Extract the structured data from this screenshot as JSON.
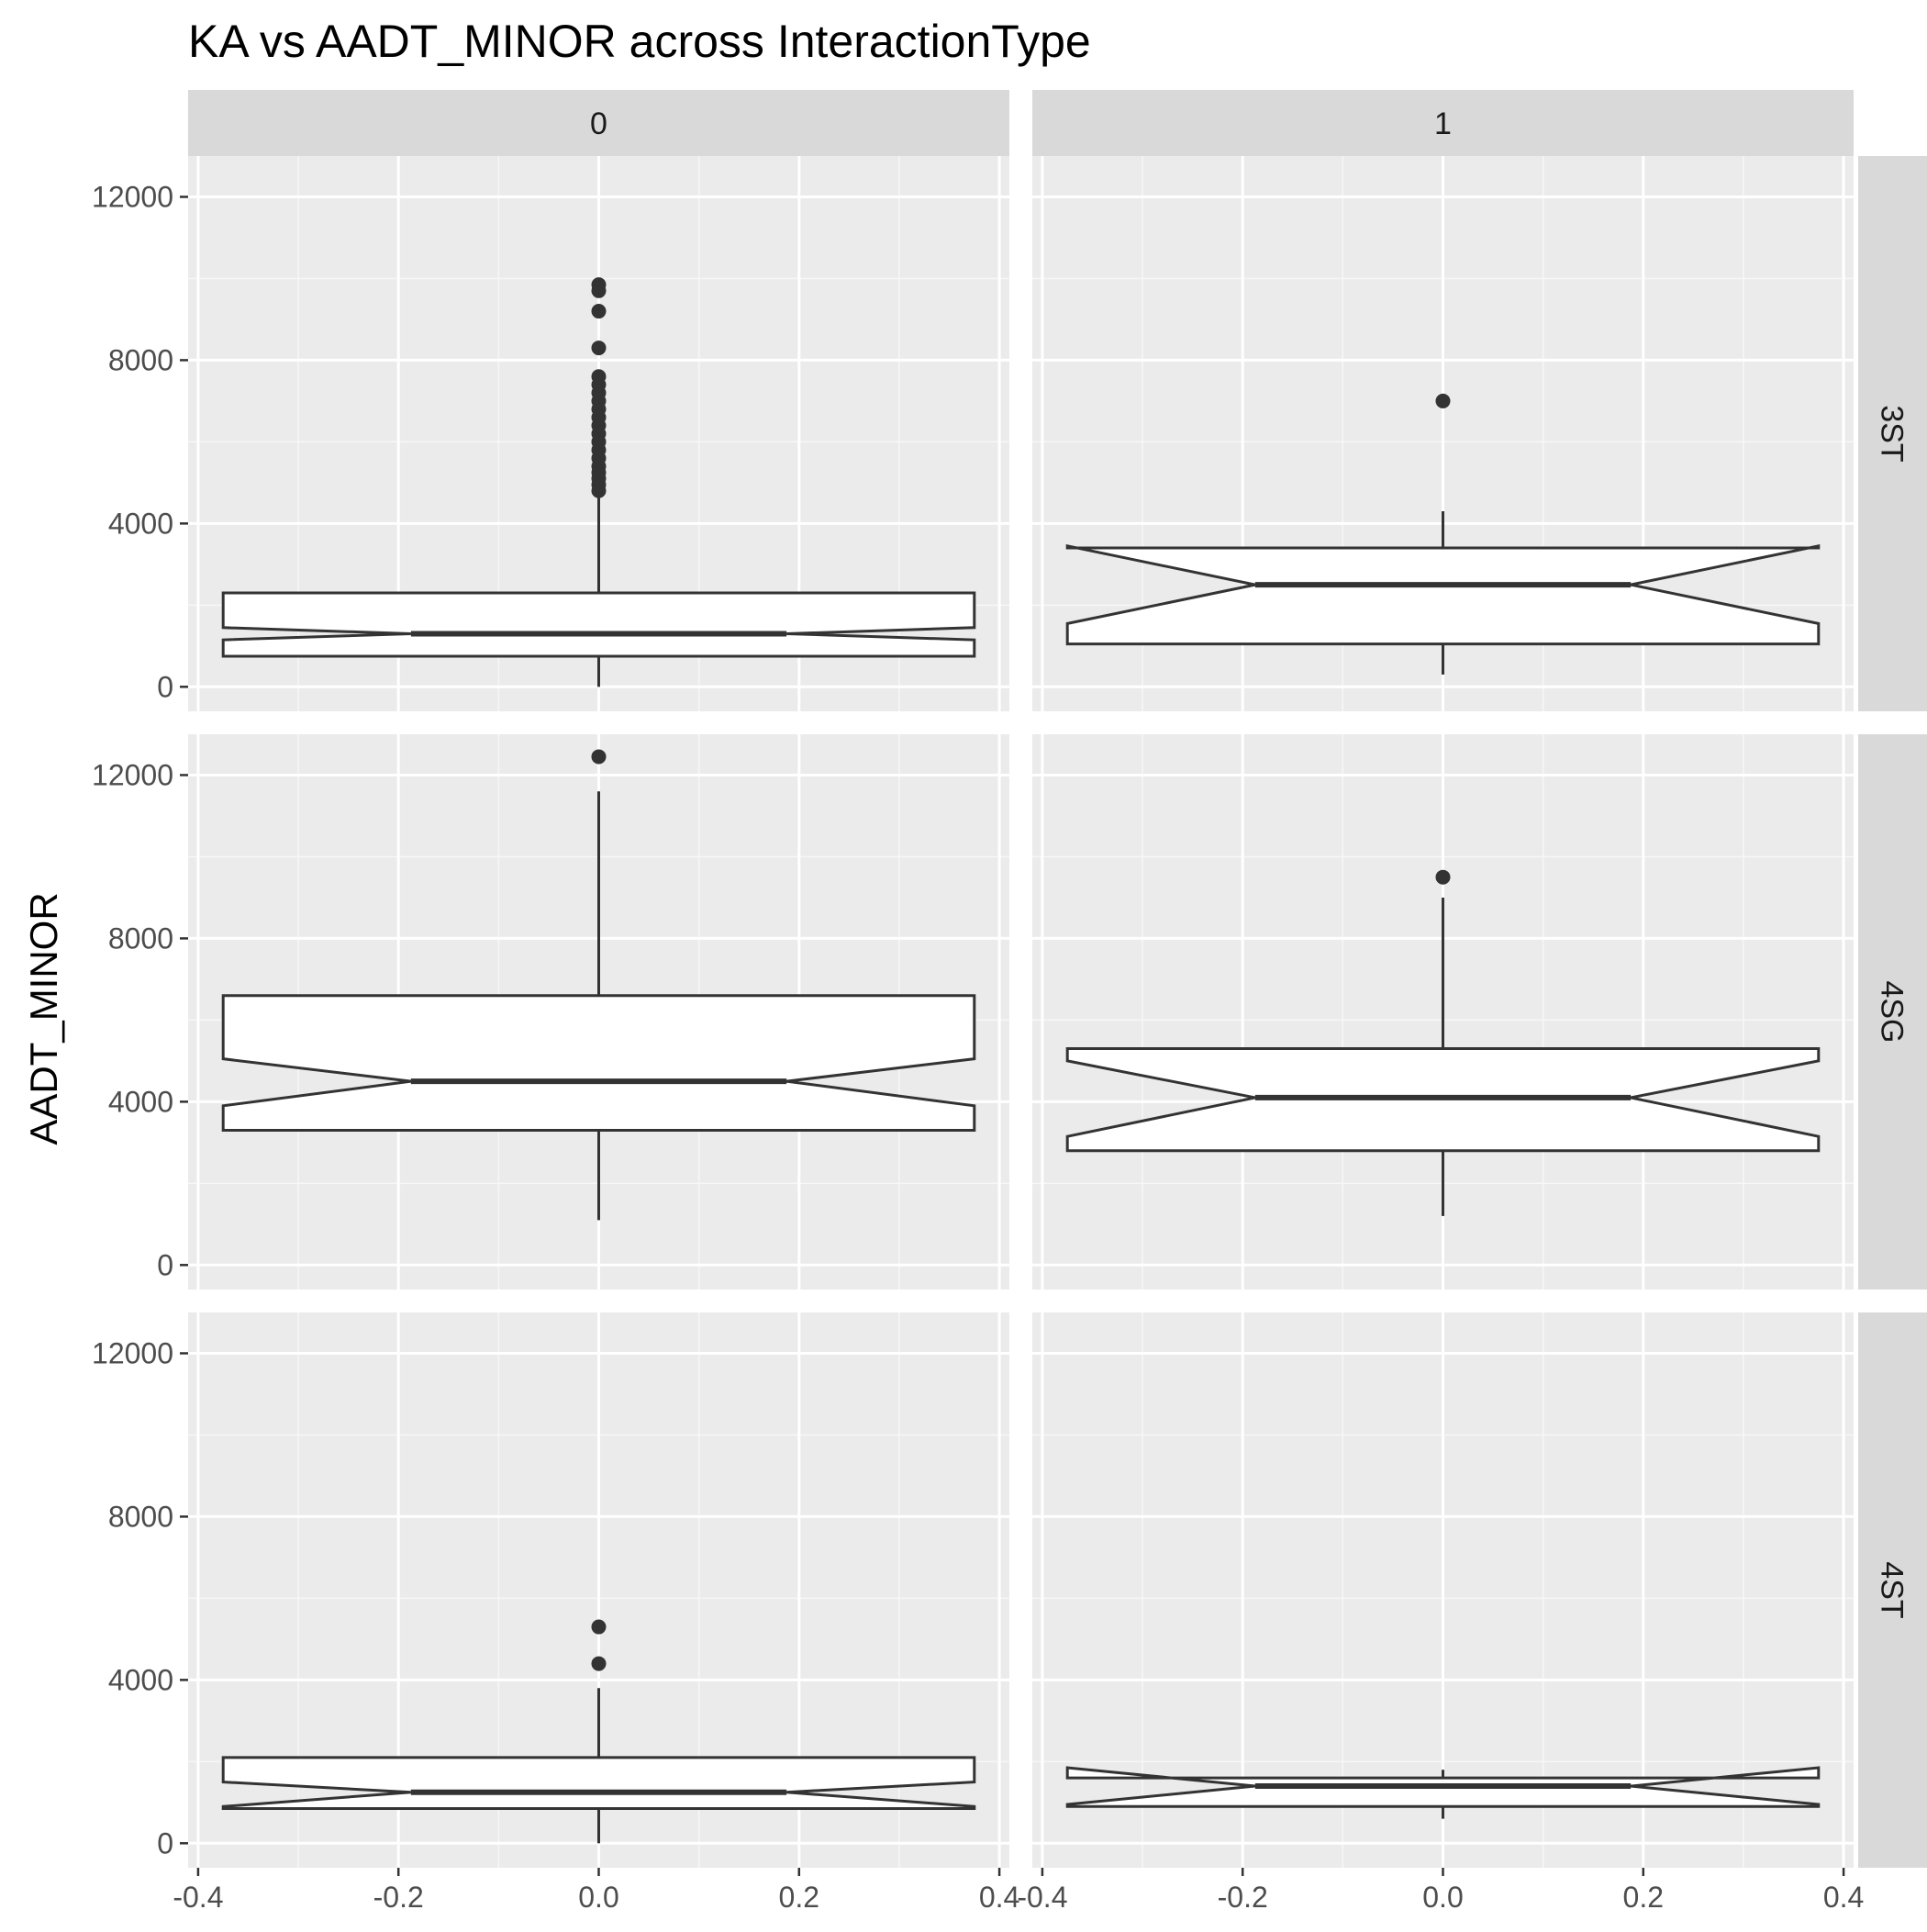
{
  "chart_data": {
    "type": "boxplot",
    "title": "KA vs AADT_MINOR across InteractionType",
    "xlabel": "",
    "ylabel": "AADT_MINOR",
    "facet_columns": [
      "0",
      "1"
    ],
    "facet_rows": [
      "3ST",
      "4SG",
      "4ST"
    ],
    "xlim": [
      -0.41,
      0.41
    ],
    "ylim": [
      -600,
      13000
    ],
    "x_ticks": [
      -0.4,
      -0.2,
      0.0,
      0.2,
      0.4
    ],
    "x_tick_labels": [
      "-0.4",
      "-0.2",
      "0.0",
      "0.2",
      "0.4"
    ],
    "y_ticks": [
      0,
      4000,
      8000,
      12000
    ],
    "y_tick_labels": [
      "0",
      "4000",
      "8000",
      "12000"
    ],
    "grid": true,
    "notched": true,
    "panels": [
      {
        "row": "3ST",
        "col": "0",
        "min": 0,
        "q1": 750,
        "median": 1300,
        "q3": 2300,
        "max": 4700,
        "notch_low": 1150,
        "notch_high": 1450,
        "outliers": [
          4800,
          4950,
          5100,
          5250,
          5400,
          5600,
          5800,
          6000,
          6200,
          6400,
          6600,
          6800,
          7000,
          7200,
          7400,
          7600,
          8300,
          9200,
          9700,
          9850
        ]
      },
      {
        "row": "3ST",
        "col": "1",
        "min": 300,
        "q1": 1050,
        "median": 2500,
        "q3": 3400,
        "max": 4300,
        "notch_low": 1550,
        "notch_high": 3450,
        "outliers": [
          7000
        ]
      },
      {
        "row": "4SG",
        "col": "0",
        "min": 1100,
        "q1": 3300,
        "median": 4500,
        "q3": 6600,
        "max": 11600,
        "notch_low": 3900,
        "notch_high": 5050,
        "outliers": [
          12450
        ]
      },
      {
        "row": "4SG",
        "col": "1",
        "min": 1200,
        "q1": 2800,
        "median": 4100,
        "q3": 5300,
        "max": 9000,
        "notch_low": 3150,
        "notch_high": 5000,
        "outliers": [
          9500
        ]
      },
      {
        "row": "4ST",
        "col": "0",
        "min": 0,
        "q1": 850,
        "median": 1250,
        "q3": 2100,
        "max": 3800,
        "notch_low": 900,
        "notch_high": 1500,
        "outliers": [
          4400,
          5300
        ]
      },
      {
        "row": "4ST",
        "col": "1",
        "min": 600,
        "q1": 900,
        "median": 1400,
        "q3": 1600,
        "max": 1800,
        "notch_low": 950,
        "notch_high": 1850,
        "outliers": []
      }
    ]
  }
}
